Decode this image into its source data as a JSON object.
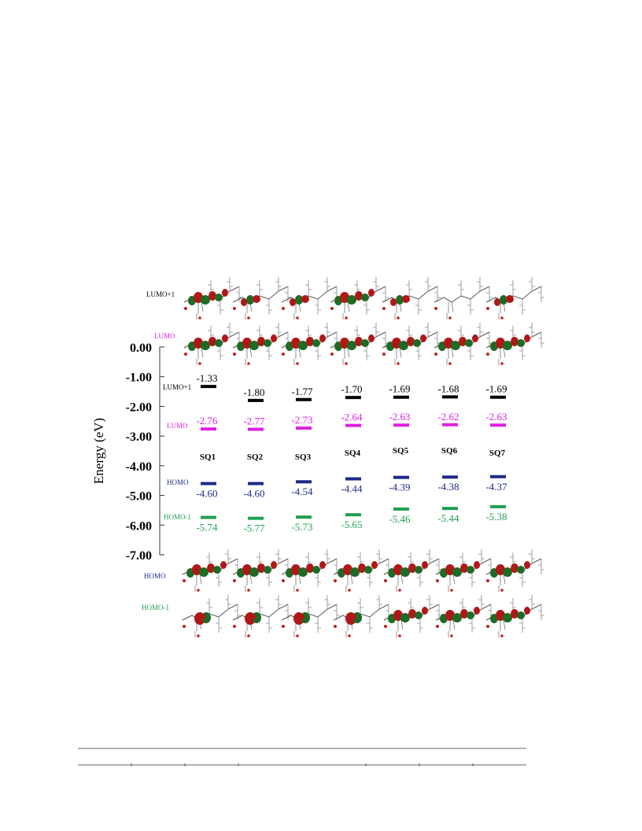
{
  "colors": {
    "lumo_plus_1": "#000000",
    "lumo": "#e020e0",
    "homo": "#1f2a86",
    "homo_minus_1": "#20a050",
    "orbital_red": "#b01818",
    "orbital_green": "#1d6b25",
    "molecule_bond": "#555555"
  },
  "row_labels": {
    "lumo_plus_1": "LUMO+1",
    "lumo": "LUMO",
    "homo": "HOMO",
    "homo_minus_1": "HOMO-1"
  },
  "chart_data": {
    "type": "energy-level diagram",
    "ylabel": "Energy (eV)",
    "ylim": [
      -7.0,
      0.0
    ],
    "yticks": [
      0.0,
      -1.0,
      -2.0,
      -3.0,
      -4.0,
      -5.0,
      -6.0,
      -7.0
    ],
    "ytick_labels": [
      "0.00",
      "-1.00",
      "-2.00",
      "-3.00",
      "-4.00",
      "-5.00",
      "-6.00",
      "-7.00"
    ],
    "categories": [
      "SQ1",
      "SQ2",
      "SQ3",
      "SQ4",
      "SQ5",
      "SQ6",
      "SQ7"
    ],
    "series": [
      {
        "name": "LUMO+1",
        "key": "lumo_plus_1",
        "values": [
          -1.33,
          -1.8,
          -1.77,
          -1.7,
          -1.69,
          -1.68,
          -1.69
        ],
        "labels": [
          "-1.33",
          "-1.80",
          "-1.77",
          "-1.70",
          "-1.69",
          "-1.68",
          "-1.69"
        ]
      },
      {
        "name": "LUMO",
        "key": "lumo",
        "values": [
          -2.76,
          -2.77,
          -2.73,
          -2.64,
          -2.63,
          -2.62,
          -2.63
        ],
        "labels": [
          "-2.76",
          "-2.77",
          "-2.73",
          "-2.64",
          "-2.63",
          "-2.62",
          "-2.63"
        ]
      },
      {
        "name": "HOMO",
        "key": "homo",
        "values": [
          -4.6,
          -4.6,
          -4.54,
          -4.44,
          -4.39,
          -4.38,
          -4.37
        ],
        "labels": [
          "-4.60",
          "-4.60",
          "-4.54",
          "-4.44",
          "-4.39",
          "-4.38",
          "-4.37"
        ]
      },
      {
        "name": "HOMO-1",
        "key": "homo_minus_1",
        "values": [
          -5.74,
          -5.77,
          -5.73,
          -5.65,
          -5.46,
          -5.44,
          -5.38
        ],
        "labels": [
          "-5.74",
          "-5.77",
          "-5.73",
          "-5.65",
          "-5.46",
          "-5.44",
          "-5.38"
        ]
      }
    ]
  }
}
